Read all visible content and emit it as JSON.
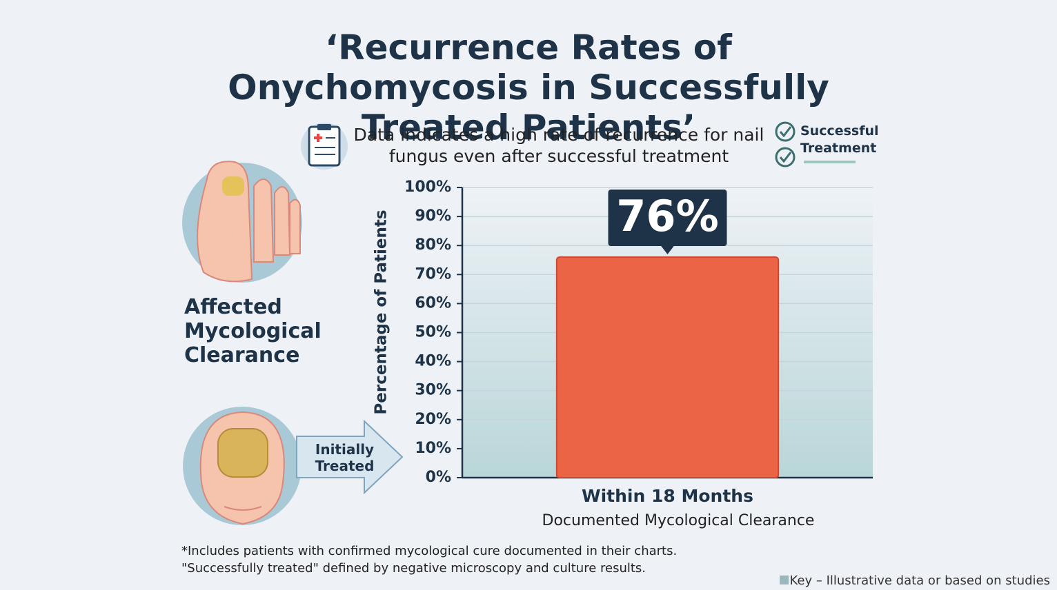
{
  "chart_data": {
    "type": "bar",
    "title": "‘Recurrence Rates of Onychomycosis in Successfully Treated Patients’",
    "subtitle": "Data indicates a high rate of recurrence for nail fungus even after successful treatment",
    "legend_label": "Successful Treatment",
    "side_labels": [
      "Affected Mycological Clearance",
      "Initially Treated"
    ],
    "y_label": "Percentage of Patients",
    "x_label": "Documented Mycological Clearance",
    "categories": [
      "Within 18 Months"
    ],
    "values": [
      76
    ],
    "value_labels": [
      "76%"
    ],
    "color": "#ec6446",
    "ylim": [
      0,
      100
    ],
    "yticks": [
      {
        "value": 0,
        "label": "0%"
      },
      {
        "value": 10,
        "label": "10%"
      },
      {
        "value": 20,
        "label": "20%"
      },
      {
        "value": 30,
        "label": "30%"
      },
      {
        "value": 40,
        "label": "40%"
      },
      {
        "value": 50,
        "label": "50%"
      },
      {
        "value": 60,
        "label": "60%"
      },
      {
        "value": 70,
        "label": "70%"
      },
      {
        "value": 80,
        "label": "80%"
      },
      {
        "value": 90,
        "label": "90%"
      },
      {
        "value": 100,
        "label": "100%"
      }
    ],
    "grid": true,
    "footnotes": [
      "*Includes patients with confirmed mycological cure documented in their charts.",
      "\"Successfully treated\" defined by negative microscopy and culture results."
    ],
    "key": "Key – Illustrative data or based on studies"
  }
}
